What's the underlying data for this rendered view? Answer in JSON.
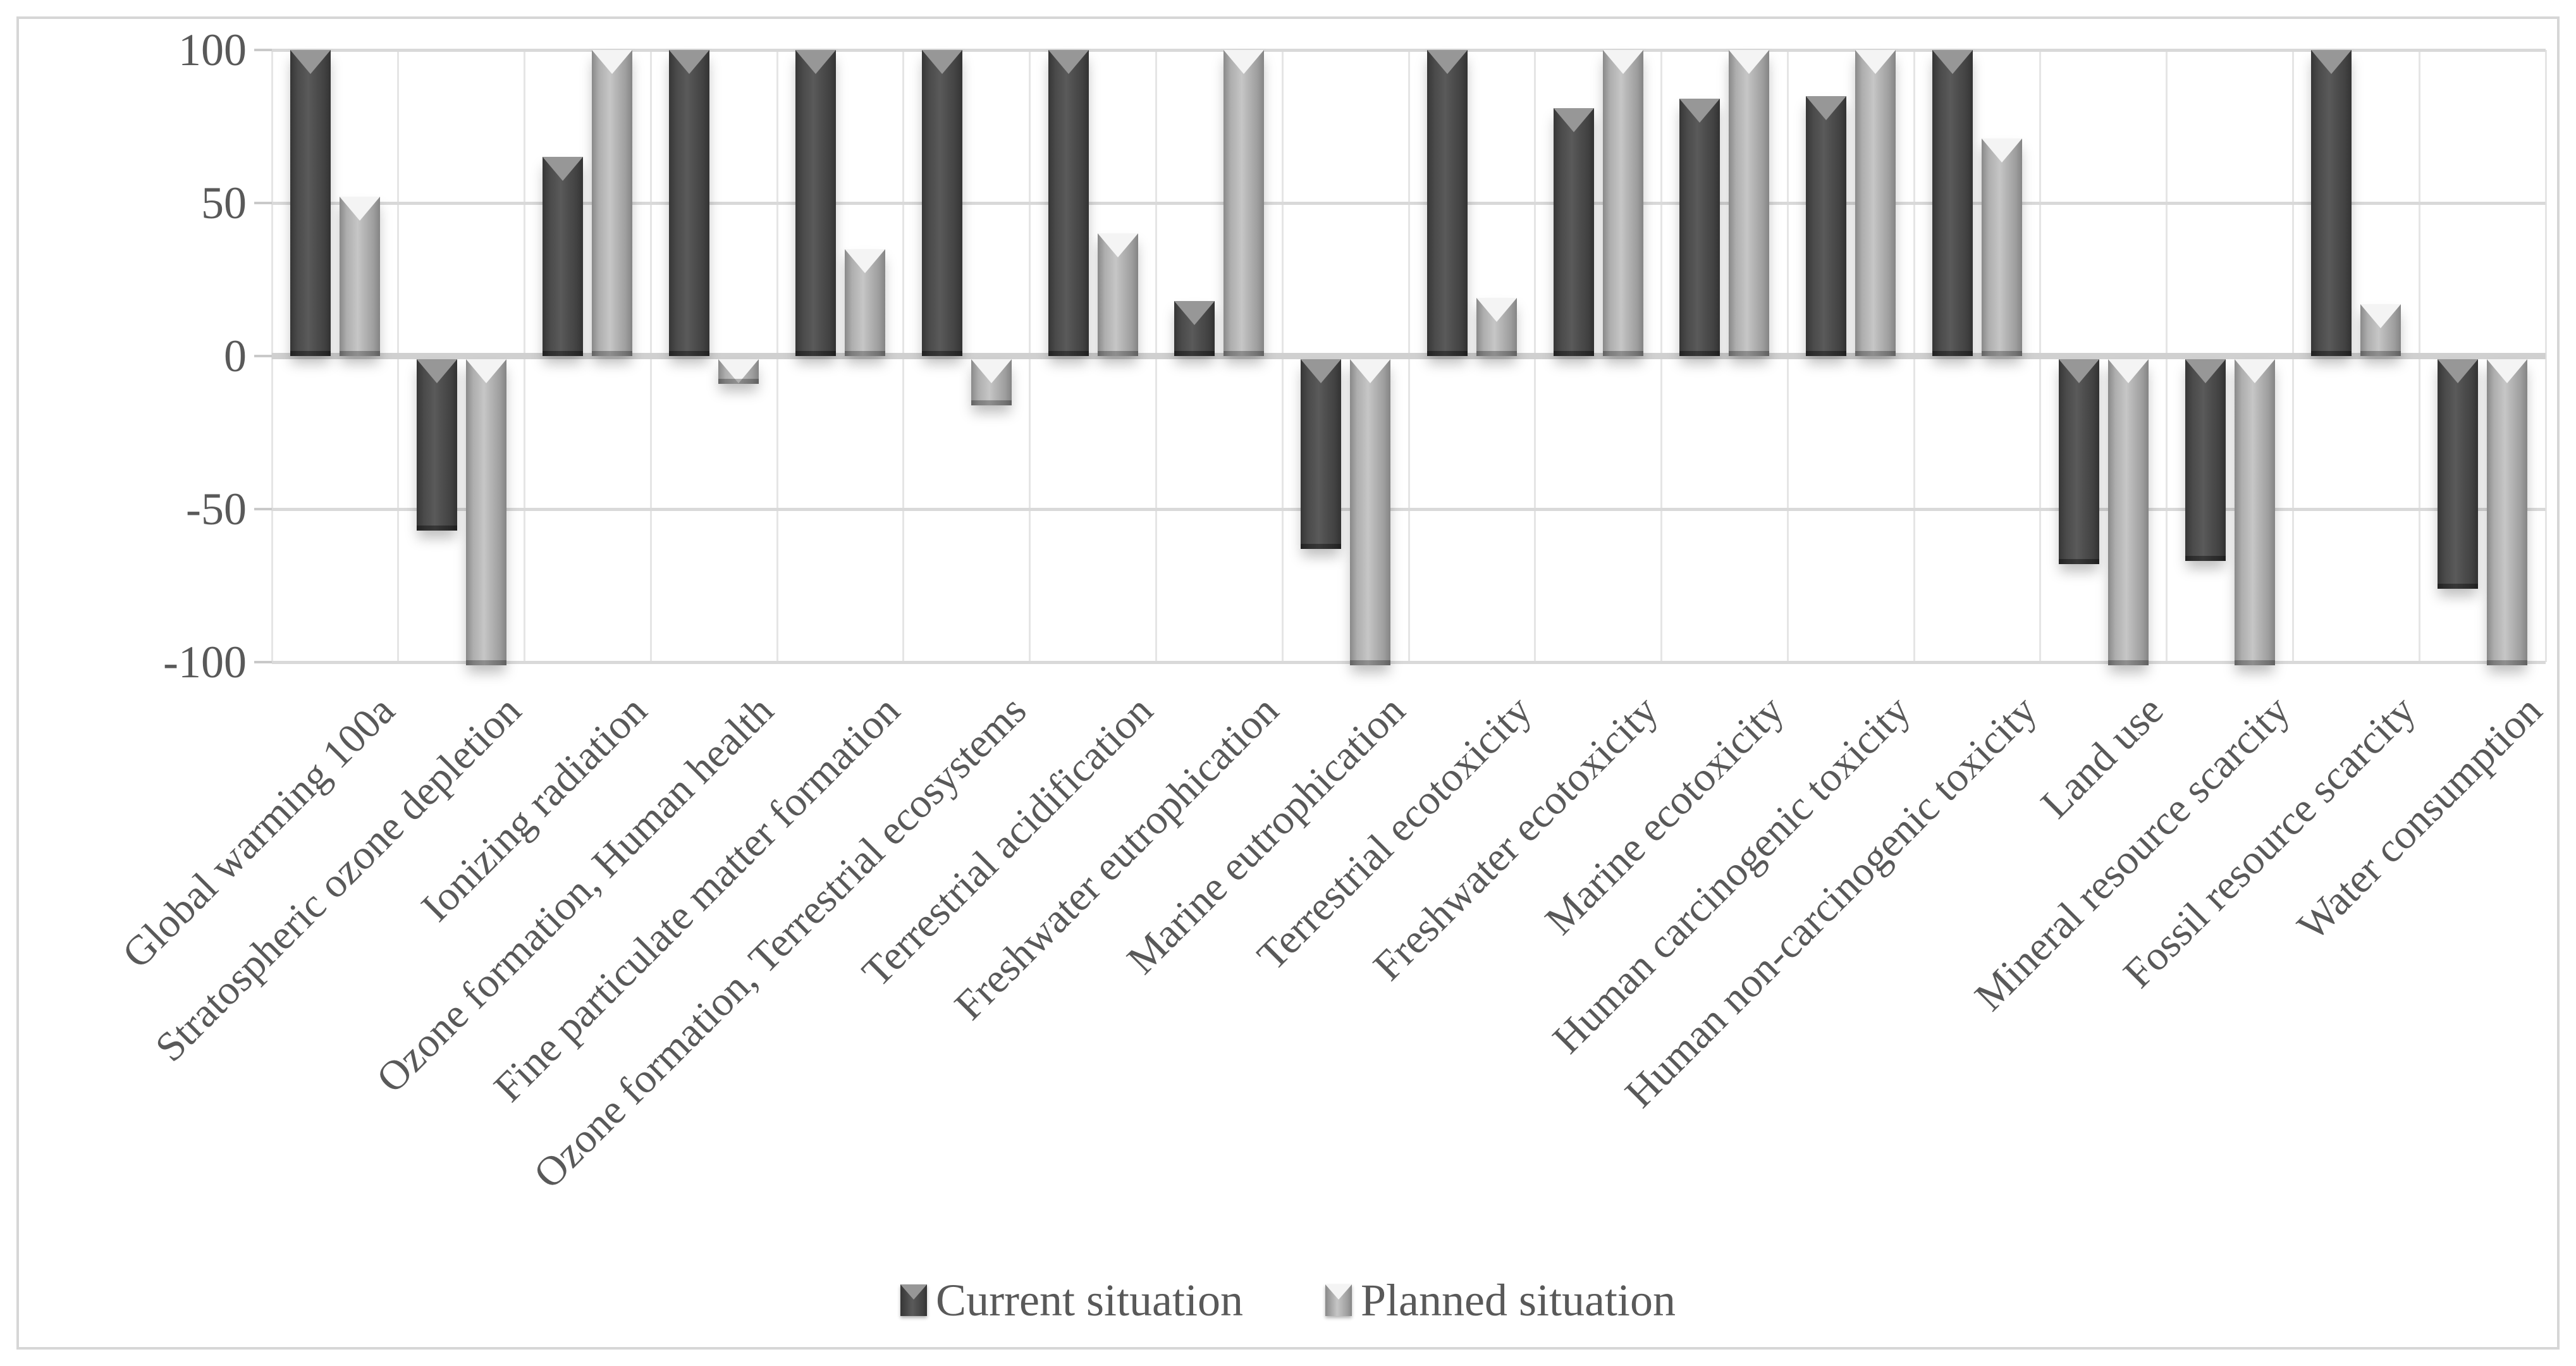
{
  "chart_data": {
    "type": "bar",
    "title": "",
    "xlabel": "",
    "ylabel": "",
    "categories": [
      "Global warming 100a",
      "Stratospheric ozone depletion",
      "Ionizing radiation",
      "Ozone formation, Human health",
      "Fine particulate matter formation",
      "Ozone formation, Terrestrial ecosystems",
      "Terrestrial acidification",
      "Freshwater eutrophication",
      "Marine eutrophication",
      "Terrestrial ecotoxicity",
      "Freshwater ecotoxicity",
      "Marine ecotoxicity",
      "Human carcinogenic toxicity",
      "Human non-carcinogenic toxicity",
      "Land use",
      "Mineral resource scarcity",
      "Fossil resource scarcity",
      "Water consumption"
    ],
    "series": [
      {
        "name": "Current situation",
        "values": [
          100,
          -56,
          65,
          100,
          100,
          100,
          100,
          18,
          -62,
          100,
          81,
          84,
          85,
          100,
          -67,
          -66,
          100,
          -75
        ]
      },
      {
        "name": "Planned situation",
        "values": [
          52,
          -100,
          100,
          -8,
          35,
          -15,
          40,
          100,
          -100,
          19,
          100,
          100,
          100,
          71,
          -100,
          -100,
          17,
          -100
        ]
      }
    ],
    "ylim": [
      -100,
      100
    ],
    "yticks": [
      100,
      50,
      0,
      -50,
      -100
    ],
    "grid": "horizontal",
    "legend_position": "bottom"
  },
  "legend": {
    "current_label": "Current situation",
    "planned_label": "Planned situation"
  },
  "colors": {
    "current_bar": "#474747",
    "planned_bar": "#a9a9a9",
    "axis_text": "#595959",
    "gridline": "#d9d9d9",
    "zero_line": "#d0d0d0",
    "frame_border": "#d6d6d6"
  }
}
